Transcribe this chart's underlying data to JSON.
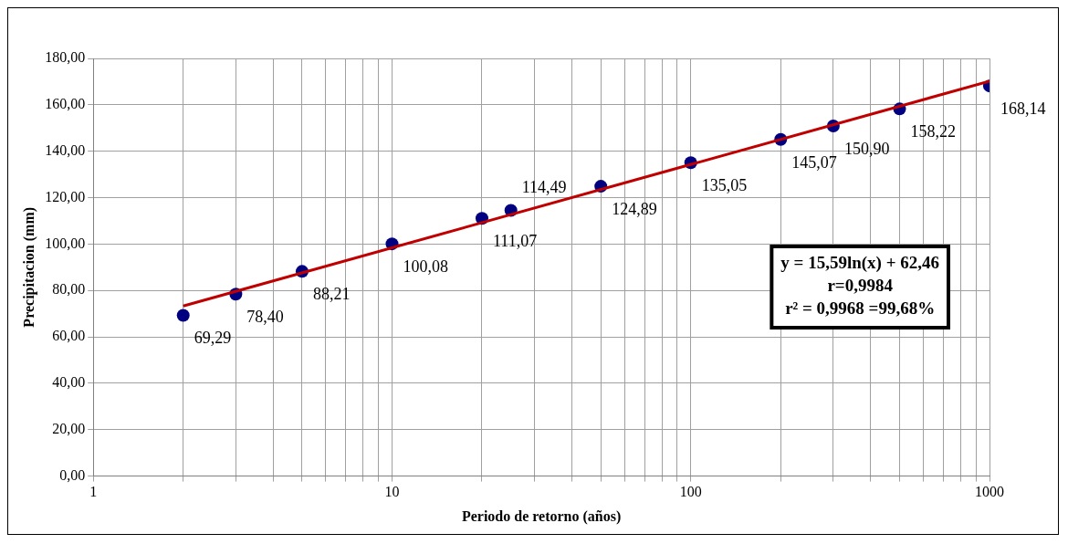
{
  "chart_data": {
    "type": "scatter",
    "xlabel": "Periodo de retorno (años)",
    "ylabel": "Precipitacion (mm)",
    "log": "x",
    "xlim": [
      1,
      1000
    ],
    "ylim": [
      0,
      180
    ],
    "xticks": [
      1,
      {
        "value": 2,
        "label": null
      },
      {
        "value": 3,
        "label": null
      },
      {
        "value": 4,
        "label": null
      },
      {
        "value": 5,
        "label": null
      },
      {
        "value": 6,
        "label": null
      },
      {
        "value": 7,
        "label": null
      },
      {
        "value": 8,
        "label": null
      },
      {
        "value": 9,
        "label": null
      },
      10,
      {
        "value": 20,
        "label": null
      },
      {
        "value": 30,
        "label": null
      },
      {
        "value": 40,
        "label": null
      },
      {
        "value": 50,
        "label": null
      },
      {
        "value": 60,
        "label": null
      },
      {
        "value": 70,
        "label": null
      },
      {
        "value": 80,
        "label": null
      },
      {
        "value": 90,
        "label": null
      },
      100,
      {
        "value": 200,
        "label": null
      },
      {
        "value": 300,
        "label": null
      },
      {
        "value": 400,
        "label": null
      },
      {
        "value": 500,
        "label": null
      },
      {
        "value": 600,
        "label": null
      },
      {
        "value": 700,
        "label": null
      },
      {
        "value": 800,
        "label": null
      },
      {
        "value": 900,
        "label": null
      },
      1000
    ],
    "yticks": [
      {
        "value": 0,
        "label": "0,00"
      },
      {
        "value": 20,
        "label": "20,00"
      },
      {
        "value": 40,
        "label": "40,00"
      },
      {
        "value": 60,
        "label": "60,00"
      },
      {
        "value": 80,
        "label": "80,00"
      },
      {
        "value": 100,
        "label": "100,00"
      },
      {
        "value": 120,
        "label": "120,00"
      },
      {
        "value": 140,
        "label": "140,00"
      },
      {
        "value": 160,
        "label": "160,00"
      },
      {
        "value": 180,
        "label": "180,00"
      }
    ],
    "grid": true,
    "legend": false,
    "marker": "circle",
    "series": [
      {
        "type": "scatter",
        "color": "#000080",
        "x": [
          2,
          3,
          5,
          10,
          20,
          25,
          50,
          100,
          200,
          300,
          500,
          1000
        ],
        "values": [
          69.29,
          78.4,
          88.21,
          100.08,
          111.07,
          114.49,
          124.89,
          135.05,
          145.07,
          150.9,
          158.22,
          168.14
        ],
        "value_labels": [
          "69,29",
          "78,40",
          "88,21",
          "100,08",
          "111,07",
          "114,49",
          "124,89",
          "135,05",
          "145,07",
          "150,90",
          "158,22",
          "168,14"
        ]
      },
      {
        "type": "line",
        "color": "#c00000",
        "line_style": "solid",
        "marker": "none",
        "x": [
          2,
          1000
        ],
        "values": [
          73.3,
          170.2
        ]
      }
    ],
    "annotations": [
      "y = 15,59ln(x) + 62,46",
      "r=0,9984",
      "r² = 0,9968 =99,68%"
    ]
  }
}
